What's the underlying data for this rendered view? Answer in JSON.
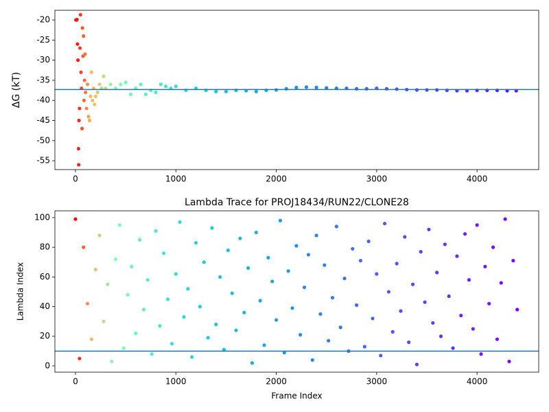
{
  "chart_data": [
    {
      "type": "scatter",
      "ylabel": "ΔG (kT)",
      "x": [
        5,
        10,
        15,
        20,
        25,
        30,
        32,
        35,
        40,
        45,
        50,
        55,
        60,
        65,
        70,
        75,
        80,
        85,
        90,
        95,
        100,
        110,
        120,
        130,
        140,
        150,
        160,
        170,
        180,
        190,
        200,
        220,
        240,
        260,
        280,
        300,
        350,
        400,
        450,
        500,
        550,
        600,
        650,
        700,
        750,
        800,
        850,
        900,
        950,
        1000,
        1100,
        1200,
        1300,
        1400,
        1500,
        1600,
        1700,
        1800,
        1900,
        2000,
        2100,
        2200,
        2300,
        2400,
        2500,
        2600,
        2700,
        2800,
        2900,
        3000,
        3100,
        3200,
        3300,
        3400,
        3500,
        3600,
        3700,
        3800,
        3900,
        4000,
        4100,
        4200,
        4300,
        4390
      ],
      "values": [
        -20,
        -20,
        -19.9,
        -26,
        -30,
        -52,
        -56,
        -45,
        -42,
        -27,
        -18.7,
        -33,
        -37,
        -47,
        -22,
        -29,
        -24,
        -40,
        -35,
        -28.5,
        -38,
        -42,
        -36,
        -44,
        -45,
        -39,
        -33,
        -40,
        -37,
        -41,
        -39,
        -38,
        -36,
        -37,
        -34,
        -37,
        -36,
        -37,
        -36,
        -35.5,
        -38.5,
        -37,
        -36,
        -38.5,
        -37.5,
        -38,
        -36,
        -36.5,
        -37,
        -36.5,
        -37.5,
        -37,
        -37.5,
        -37.8,
        -37.8,
        -37.5,
        -37.6,
        -37.8,
        -37.5,
        -37.4,
        -37.1,
        -36.8,
        -36.7,
        -36.8,
        -36.9,
        -37,
        -37,
        -37.1,
        -37.1,
        -37,
        -37.1,
        -37.2,
        -37.3,
        -37.4,
        -37.4,
        -37.4,
        -37.5,
        -37.6,
        -37.6,
        -37.5,
        -37.5,
        -37.5,
        -37.6,
        -37.6
      ],
      "xlim": [
        -205,
        4614
      ],
      "ylim": [
        -57.2,
        -17.6
      ],
      "xticks": [
        0,
        1000,
        2000,
        3000,
        4000
      ],
      "yticks": [
        -20,
        -25,
        -30,
        -35,
        -40,
        -45,
        -50,
        -55
      ],
      "hline": -37.3,
      "hline_color": "#1f77b4",
      "colormap": [
        {
          "value": 0,
          "color": "#ff0000"
        },
        {
          "value": 150,
          "color": "#ffb462"
        },
        {
          "value": 400,
          "color": "#80ffb4"
        },
        {
          "value": 1200,
          "color": "#20d0e0"
        },
        {
          "value": 2200,
          "color": "#1e90f0"
        },
        {
          "value": 3000,
          "color": "#4a60f0"
        },
        {
          "value": 4400,
          "color": "#8000ff"
        }
      ]
    },
    {
      "type": "scatter",
      "title": "Lambda Trace for PROJ18434/RUN22/CLONE28",
      "xlabel": "Frame Index",
      "ylabel": "Lambda Index",
      "x": [
        0,
        40,
        80,
        120,
        160,
        200,
        240,
        280,
        320,
        360,
        400,
        440,
        480,
        520,
        560,
        600,
        640,
        680,
        720,
        760,
        800,
        840,
        880,
        920,
        960,
        1000,
        1040,
        1080,
        1120,
        1160,
        1200,
        1240,
        1280,
        1320,
        1360,
        1400,
        1440,
        1480,
        1520,
        1560,
        1600,
        1640,
        1680,
        1720,
        1760,
        1800,
        1840,
        1880,
        1920,
        1960,
        2000,
        2040,
        2080,
        2120,
        2160,
        2200,
        2240,
        2280,
        2320,
        2360,
        2400,
        2440,
        2480,
        2520,
        2560,
        2600,
        2640,
        2680,
        2720,
        2760,
        2800,
        2840,
        2880,
        2920,
        2960,
        3000,
        3040,
        3080,
        3120,
        3160,
        3200,
        3240,
        3280,
        3320,
        3360,
        3400,
        3440,
        3480,
        3520,
        3560,
        3600,
        3640,
        3680,
        3720,
        3760,
        3800,
        3840,
        3880,
        3920,
        3960,
        4000,
        4040,
        4080,
        4120,
        4160,
        4200,
        4240,
        4280,
        4320,
        4360,
        4400
      ],
      "values": [
        99,
        5,
        80,
        42,
        18,
        65,
        88,
        30,
        55,
        3,
        72,
        95,
        12,
        48,
        67,
        22,
        85,
        38,
        58,
        8,
        91,
        27,
        76,
        45,
        15,
        62,
        97,
        33,
        52,
        6,
        83,
        40,
        70,
        19,
        93,
        28,
        60,
        11,
        78,
        49,
        24,
        86,
        36,
        66,
        2,
        90,
        44,
        14,
        73,
        57,
        31,
        98,
        9,
        64,
        39,
        81,
        21,
        53,
        75,
        4,
        88,
        35,
        68,
        17,
        46,
        94,
        26,
        59,
        10,
        79,
        41,
        71,
        13,
        84,
        32,
        62,
        7,
        96,
        50,
        23,
        69,
        37,
        87,
        16,
        55,
        1,
        77,
        43,
        92,
        29,
        63,
        20,
        82,
        47,
        12,
        74,
        34,
        89,
        58,
        25,
        95,
        8,
        67,
        42,
        80,
        18,
        56,
        99,
        3,
        71,
        38
      ],
      "xlim": [
        -205,
        4614
      ],
      "ylim": [
        -4.2,
        104.6
      ],
      "xticks": [
        0,
        1000,
        2000,
        3000,
        4000
      ],
      "yticks": [
        0,
        20,
        40,
        60,
        80,
        100
      ],
      "hline": 10,
      "hline_color": "#1f77b4",
      "colormap": [
        {
          "value": 0,
          "color": "#ff0000"
        },
        {
          "value": 150,
          "color": "#ffb462"
        },
        {
          "value": 400,
          "color": "#80ffb4"
        },
        {
          "value": 1200,
          "color": "#20d0e0"
        },
        {
          "value": 2200,
          "color": "#1e90f0"
        },
        {
          "value": 3000,
          "color": "#4a60f0"
        },
        {
          "value": 4400,
          "color": "#8000ff"
        }
      ]
    }
  ]
}
